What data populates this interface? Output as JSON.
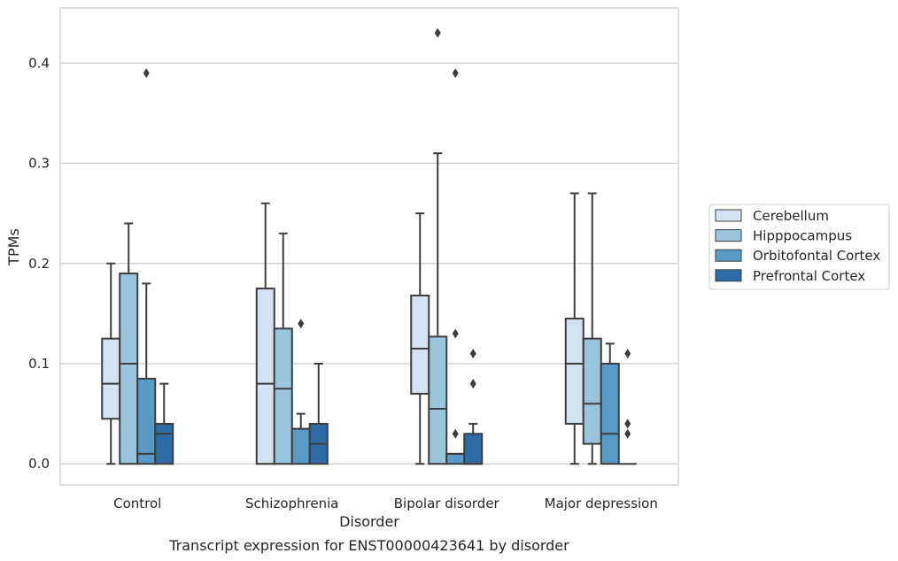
{
  "chart_data": {
    "type": "boxplot",
    "title": "",
    "caption": "Transcript expression for ENST00000423641 by disorder",
    "xlabel": "Disorder",
    "ylabel": "TPMs",
    "ylim": [
      -0.021,
      0.455
    ],
    "yticks": [
      0.0,
      0.1,
      0.2,
      0.3,
      0.4
    ],
    "ytick_labels": [
      "0.0",
      "0.1",
      "0.2",
      "0.3",
      "0.4"
    ],
    "grid": "horizontal",
    "legend_position": "right",
    "categories": [
      "Control",
      "Schizophrenia",
      "Bipolar disorder",
      "Major depression"
    ],
    "series": [
      {
        "name": "Cerebellum",
        "color": "#d4e2f1",
        "boxes": [
          {
            "whislo": 0.0,
            "q1": 0.045,
            "med": 0.08,
            "q3": 0.125,
            "whishi": 0.2,
            "fliers": []
          },
          {
            "whislo": 0.0,
            "q1": 0.0,
            "med": 0.08,
            "q3": 0.175,
            "whishi": 0.26,
            "fliers": []
          },
          {
            "whislo": 0.0,
            "q1": 0.07,
            "med": 0.115,
            "q3": 0.168,
            "whishi": 0.25,
            "fliers": []
          },
          {
            "whislo": 0.0,
            "q1": 0.04,
            "med": 0.1,
            "q3": 0.145,
            "whishi": 0.27,
            "fliers": []
          }
        ]
      },
      {
        "name": "Hipppocampus",
        "color": "#9bc4dd",
        "boxes": [
          {
            "whislo": 0.0,
            "q1": 0.0,
            "med": 0.1,
            "q3": 0.19,
            "whishi": 0.24,
            "fliers": []
          },
          {
            "whislo": 0.0,
            "q1": 0.0,
            "med": 0.075,
            "q3": 0.135,
            "whishi": 0.23,
            "fliers": []
          },
          {
            "whislo": 0.0,
            "q1": 0.0,
            "med": 0.055,
            "q3": 0.127,
            "whishi": 0.31,
            "fliers": [
              0.43
            ]
          },
          {
            "whislo": 0.0,
            "q1": 0.02,
            "med": 0.06,
            "q3": 0.125,
            "whishi": 0.27,
            "fliers": []
          }
        ]
      },
      {
        "name": "Orbitofontal Cortex",
        "color": "#5a9ac7",
        "boxes": [
          {
            "whislo": 0.0,
            "q1": 0.0,
            "med": 0.01,
            "q3": 0.085,
            "whishi": 0.18,
            "fliers": [
              0.39
            ]
          },
          {
            "whislo": 0.0,
            "q1": 0.0,
            "med": 0.035,
            "q3": 0.035,
            "whishi": 0.05,
            "fliers": [
              0.14
            ]
          },
          {
            "whislo": 0.0,
            "q1": 0.0,
            "med": 0.01,
            "q3": 0.01,
            "whishi": 0.01,
            "fliers": [
              0.39,
              0.13,
              0.03
            ]
          },
          {
            "whislo": 0.0,
            "q1": 0.0,
            "med": 0.03,
            "q3": 0.1,
            "whishi": 0.12,
            "fliers": []
          }
        ]
      },
      {
        "name": "Prefrontal Cortex",
        "color": "#2e6ca7",
        "boxes": [
          {
            "whislo": 0.0,
            "q1": 0.0,
            "med": 0.03,
            "q3": 0.04,
            "whishi": 0.08,
            "fliers": []
          },
          {
            "whislo": 0.0,
            "q1": 0.0,
            "med": 0.02,
            "q3": 0.04,
            "whishi": 0.1,
            "fliers": []
          },
          {
            "whislo": 0.0,
            "q1": 0.0,
            "med": 0.0,
            "q3": 0.03,
            "whishi": 0.04,
            "fliers": [
              0.11,
              0.08
            ]
          },
          {
            "whislo": 0.0,
            "q1": 0.0,
            "med": 0.0,
            "q3": 0.0,
            "whishi": 0.0,
            "fliers": [
              0.11,
              0.04,
              0.03
            ]
          }
        ]
      }
    ]
  }
}
